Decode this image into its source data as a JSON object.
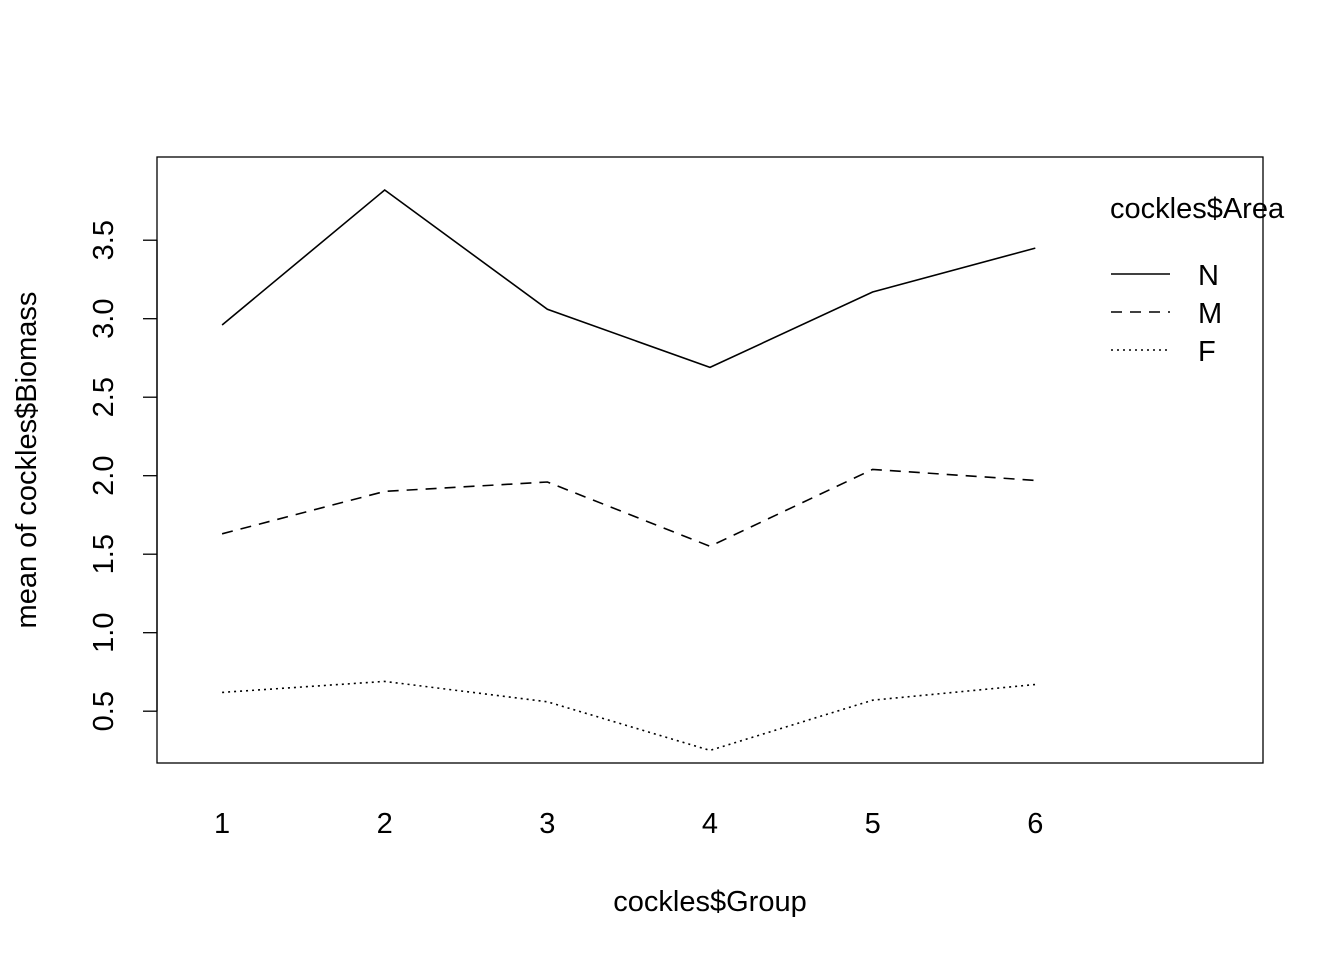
{
  "chart_data": {
    "type": "line",
    "title": "",
    "xlabel": "cockles$Group",
    "ylabel": "mean of  cockles$Biomass",
    "categories": [
      "1",
      "2",
      "3",
      "4",
      "5",
      "6"
    ],
    "yticks": [
      "0.5",
      "1.0",
      "1.5",
      "2.0",
      "2.5",
      "3.0",
      "3.5"
    ],
    "ylim": [
      0.17,
      4.03
    ],
    "xlim": [
      0.6,
      7.4
    ],
    "grid": false,
    "legend": {
      "title": "cockles$Area",
      "placement": "top-right",
      "entries": [
        "N",
        "M",
        "F"
      ]
    },
    "series": [
      {
        "name": "N",
        "line_style": "solid",
        "values": [
          2.96,
          3.82,
          3.06,
          2.69,
          3.17,
          3.45
        ]
      },
      {
        "name": "M",
        "line_style": "dashed",
        "values": [
          1.63,
          1.9,
          1.96,
          1.55,
          2.04,
          1.97
        ]
      },
      {
        "name": "F",
        "line_style": "dotted",
        "values": [
          0.62,
          0.69,
          0.56,
          0.25,
          0.57,
          0.67
        ]
      }
    ]
  }
}
